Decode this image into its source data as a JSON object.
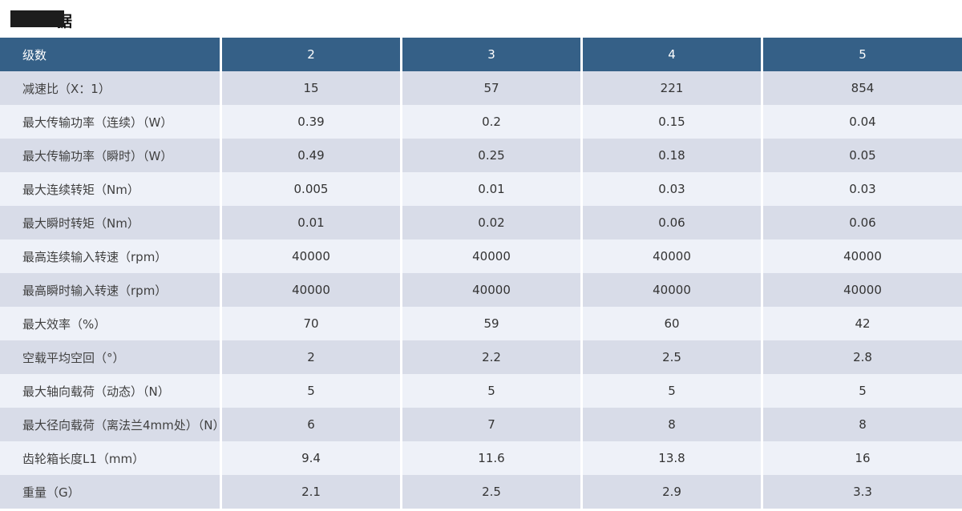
{
  "title": {
    "visible_char": "据"
  },
  "colors": {
    "header_bg": "#356087",
    "row_dark": "#d8dce8",
    "row_light": "#eef1f8",
    "title_redaction": "#1d1d1d"
  },
  "table": {
    "header": [
      "级数",
      "2",
      "3",
      "4",
      "5"
    ],
    "rows": [
      {
        "label": "减速比（X：1）",
        "values": [
          "15",
          "57",
          "221",
          "854"
        ]
      },
      {
        "label": "最大传输功率（连续）（W）",
        "values": [
          "0.39",
          "0.2",
          "0.15",
          "0.04"
        ]
      },
      {
        "label": "最大传输功率（瞬时）（W）",
        "values": [
          "0.49",
          "0.25",
          "0.18",
          "0.05"
        ]
      },
      {
        "label": "最大连续转矩（Nm）",
        "values": [
          "0.005",
          "0.01",
          "0.03",
          "0.03"
        ]
      },
      {
        "label": "最大瞬时转矩（Nm）",
        "values": [
          "0.01",
          "0.02",
          "0.06",
          "0.06"
        ]
      },
      {
        "label": "最高连续输入转速（rpm）",
        "values": [
          "40000",
          "40000",
          "40000",
          "40000"
        ]
      },
      {
        "label": "最高瞬时输入转速（rpm）",
        "values": [
          "40000",
          "40000",
          "40000",
          "40000"
        ]
      },
      {
        "label": "最大效率（%）",
        "values": [
          "70",
          "59",
          "60",
          "42"
        ]
      },
      {
        "label": "空载平均空回（°）",
        "values": [
          "2",
          "2.2",
          "2.5",
          "2.8"
        ]
      },
      {
        "label": "最大轴向载荷（动态）（N）",
        "values": [
          "5",
          "5",
          "5",
          "5"
        ]
      },
      {
        "label": "最大径向载荷（离法兰4mm处）（N）",
        "values": [
          "6",
          "7",
          "8",
          "8"
        ]
      },
      {
        "label": "齿轮箱长度L1（mm）",
        "values": [
          "9.4",
          "11.6",
          "13.8",
          "16"
        ]
      },
      {
        "label": "重量（G）",
        "values": [
          "2.1",
          "2.5",
          "2.9",
          "3.3"
        ]
      }
    ]
  }
}
